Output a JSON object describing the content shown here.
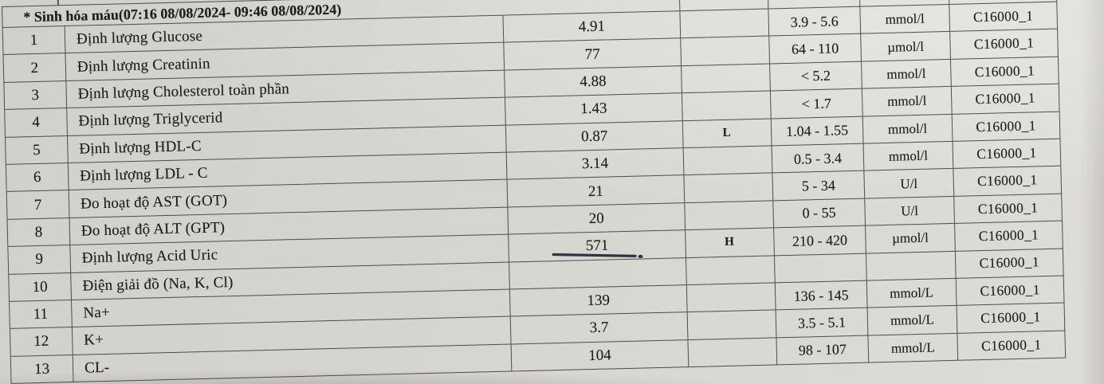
{
  "table": {
    "header": "* Sinh hóa máu(07:16 08/08/2024- 09:46 08/08/2024)",
    "columns": [
      "no",
      "test_name",
      "result",
      "flag",
      "reference_range",
      "unit",
      "device_code"
    ],
    "rows": [
      {
        "no": "1",
        "name": "Định lượng Glucose",
        "result": "4.91",
        "flag": "",
        "range": "3.9 - 5.6",
        "unit": "mmol/l",
        "code": "C16000_1"
      },
      {
        "no": "2",
        "name": "Định lượng Creatinin",
        "result": "77",
        "flag": "",
        "range": "64 - 110",
        "unit": "µmol/l",
        "code": "C16000_1"
      },
      {
        "no": "3",
        "name": "Định lượng Cholesterol toàn phần",
        "result": "4.88",
        "flag": "",
        "range": "< 5.2",
        "unit": "mmol/l",
        "code": "C16000_1"
      },
      {
        "no": "4",
        "name": "Định lượng Triglycerid",
        "result": "1.43",
        "flag": "",
        "range": "< 1.7",
        "unit": "mmol/l",
        "code": "C16000_1"
      },
      {
        "no": "5",
        "name": "Định lượng HDL-C",
        "result": "0.87",
        "flag": "L",
        "range": "1.04 - 1.55",
        "unit": "mmol/l",
        "code": "C16000_1"
      },
      {
        "no": "6",
        "name": "Định lượng LDL - C",
        "result": "3.14",
        "flag": "",
        "range": "0.5 - 3.4",
        "unit": "mmol/l",
        "code": "C16000_1"
      },
      {
        "no": "7",
        "name": "Đo hoạt độ AST (GOT)",
        "result": "21",
        "flag": "",
        "range": "5 - 34",
        "unit": "U/l",
        "code": "C16000_1"
      },
      {
        "no": "8",
        "name": "Đo hoạt độ ALT (GPT)",
        "result": "20",
        "flag": "",
        "range": "0 - 55",
        "unit": "U/l",
        "code": "C16000_1"
      },
      {
        "no": "9",
        "name": "Định lượng Acid Uric",
        "result": "571",
        "flag": "H",
        "range": "210 - 420",
        "unit": "µmol/l",
        "code": "C16000_1"
      },
      {
        "no": "10",
        "name": "Điện giải đồ (Na, K, Cl)",
        "result": "",
        "flag": "",
        "range": "",
        "unit": "",
        "code": "C16000_1"
      },
      {
        "no": "11",
        "name": "Na+",
        "result": "139",
        "flag": "",
        "range": "136 - 145",
        "unit": "mmol/L",
        "code": "C16000_1"
      },
      {
        "no": "12",
        "name": "K+",
        "result": "3.7",
        "flag": "",
        "range": "3.5 - 5.1",
        "unit": "mmol/L",
        "code": "C16000_1"
      },
      {
        "no": "13",
        "name": "CL-",
        "result": "104",
        "flag": "",
        "range": "98 - 107",
        "unit": "mmol/L",
        "code": "C16000_1"
      }
    ],
    "pen_mark": {
      "type": "underline",
      "row_no": "9",
      "target_value": "571",
      "ink_color": "#2b3440"
    },
    "paper_color": "#d7d5d0",
    "line_color": "#37342f"
  }
}
